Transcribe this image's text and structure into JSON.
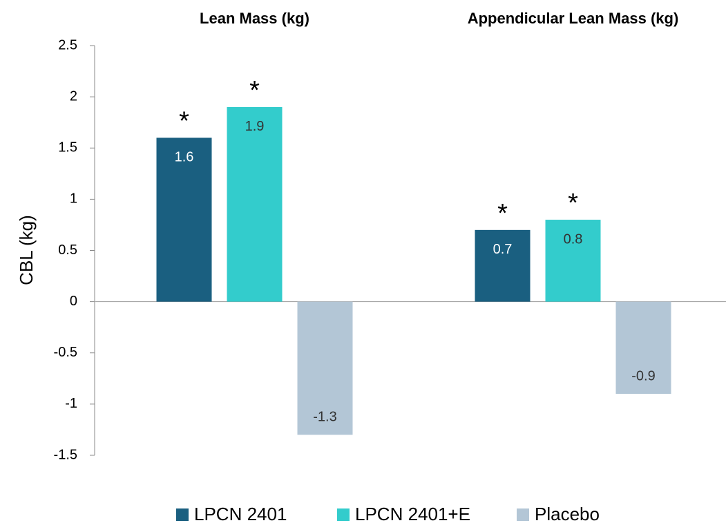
{
  "chart_data": {
    "type": "bar",
    "categories": [
      "Lean Mass (kg)",
      "Appendicular Lean Mass (kg)"
    ],
    "series": [
      {
        "name": "LPCN 2401",
        "color": "#1a5f80",
        "values": [
          1.6,
          0.7
        ],
        "annotations": [
          "*",
          "*"
        ]
      },
      {
        "name": "LPCN 2401+E",
        "color": "#33cccc",
        "values": [
          1.9,
          0.8
        ],
        "annotations": [
          "*",
          "*"
        ]
      },
      {
        "name": "Placebo",
        "color": "#b3c6d6",
        "values": [
          -1.3,
          -0.9
        ]
      }
    ],
    "y_label": "CBL (kg)",
    "ylim": [
      -1.5,
      2.5
    ],
    "yticks": [
      -1.5,
      -1,
      -0.5,
      0,
      0.5,
      1,
      1.5,
      2,
      2.5
    ],
    "legend": "bottom"
  }
}
